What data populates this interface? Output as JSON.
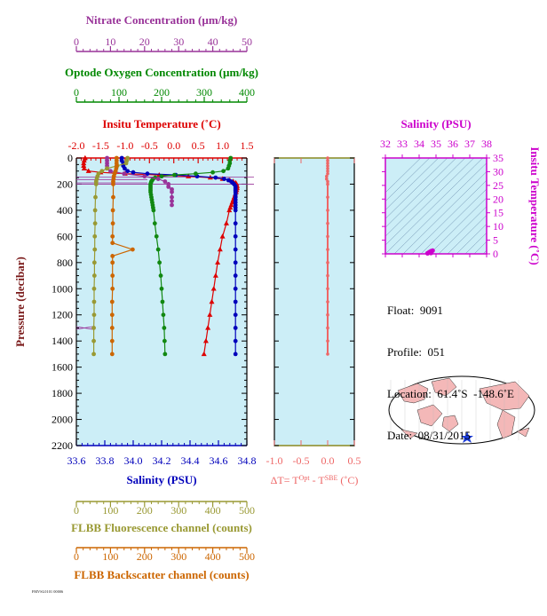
{
  "chart_data": {
    "type": "scatter",
    "main_panel": {
      "y_axis": {
        "label": "Pressure (decibar)",
        "range": [
          2200,
          0
        ],
        "ticks": [
          0,
          200,
          400,
          600,
          800,
          1000,
          1200,
          1400,
          1600,
          1800,
          2000,
          2200
        ]
      },
      "axes": [
        {
          "key": "nitrate",
          "label": "Nitrate Concentration (µm/kg)",
          "range": [
            0,
            50
          ],
          "ticks": [
            0,
            10,
            20,
            30,
            40,
            50
          ],
          "color": "#993399",
          "side": "top"
        },
        {
          "key": "oxygen",
          "label": "Optode Oxygen Concentration (µm/kg)",
          "range": [
            0,
            400
          ],
          "ticks": [
            0,
            100,
            200,
            300,
            400
          ],
          "color": "#008800",
          "side": "top"
        },
        {
          "key": "temperature",
          "label": "Insitu Temperature (˚C)",
          "range": [
            -2.0,
            1.5
          ],
          "ticks": [
            "-2.0",
            "-1.5",
            "-1.0",
            "-0.5",
            "0.0",
            "0.5",
            "1.0",
            "1.5"
          ],
          "color": "#dd0000",
          "side": "top"
        },
        {
          "key": "salinity",
          "label": "Salinity (PSU)",
          "range": [
            33.6,
            34.8
          ],
          "ticks": [
            "33.6",
            "33.8",
            "34.0",
            "34.2",
            "34.4",
            "34.6",
            "34.8"
          ],
          "color": "#0000bb",
          "side": "bottom"
        },
        {
          "key": "fluorescence",
          "label": "FLBB Fluorescence channel (counts)",
          "range": [
            0,
            500
          ],
          "ticks": [
            0,
            100,
            200,
            300,
            400,
            500
          ],
          "color": "#999933",
          "side": "bottom"
        },
        {
          "key": "backscatter",
          "label": "FLBB Backscatter channel (counts)",
          "range": [
            0,
            500
          ],
          "ticks": [
            0,
            100,
            200,
            300,
            400,
            500
          ],
          "color": "#cc6600",
          "side": "bottom"
        }
      ],
      "series": [
        {
          "key": "temperature",
          "marker": "triangle",
          "color": "#dd0000",
          "p": [
            0,
            20,
            40,
            60,
            80,
            100,
            110,
            120,
            130,
            140,
            150,
            160,
            170,
            180,
            190,
            200,
            215,
            230,
            245,
            260,
            280,
            300,
            320,
            340,
            360,
            380,
            400,
            500,
            600,
            700,
            800,
            900,
            1000,
            1100,
            1200,
            1300,
            1400,
            1500
          ],
          "v": [
            -1.82,
            -1.84,
            -1.85,
            -1.85,
            -1.84,
            -1.75,
            -1.5,
            -1.0,
            -0.3,
            0.3,
            0.75,
            1.0,
            1.15,
            1.22,
            1.27,
            1.29,
            1.3,
            1.3,
            1.29,
            1.28,
            1.26,
            1.24,
            1.22,
            1.2,
            1.18,
            1.16,
            1.14,
            1.08,
            1.0,
            0.95,
            0.9,
            0.86,
            0.82,
            0.78,
            0.74,
            0.7,
            0.66,
            0.62
          ]
        },
        {
          "key": "salinity",
          "marker": "circle",
          "color": "#0000bb",
          "p": [
            0,
            20,
            40,
            60,
            80,
            100,
            110,
            120,
            130,
            140,
            150,
            160,
            170,
            180,
            190,
            200,
            215,
            230,
            245,
            260,
            280,
            300,
            320,
            340,
            360,
            380,
            400,
            500,
            600,
            700,
            800,
            900,
            1000,
            1100,
            1200,
            1300,
            1400,
            1500
          ],
          "v": [
            33.92,
            33.92,
            33.93,
            33.93,
            33.94,
            33.96,
            34.0,
            34.1,
            34.3,
            34.45,
            34.58,
            34.64,
            34.67,
            34.69,
            34.7,
            34.71,
            34.72,
            34.72,
            34.72,
            34.72,
            34.72,
            34.72,
            34.72,
            34.72,
            34.72,
            34.72,
            34.72,
            34.72,
            34.72,
            34.72,
            34.72,
            34.72,
            34.72,
            34.72,
            34.72,
            34.72,
            34.72,
            34.72
          ]
        },
        {
          "key": "oxygen",
          "marker": "circle",
          "color": "#118811",
          "p": [
            0,
            20,
            40,
            60,
            80,
            100,
            110,
            120,
            130,
            140,
            150,
            160,
            170,
            180,
            190,
            200,
            215,
            230,
            245,
            260,
            280,
            300,
            320,
            340,
            360,
            380,
            400,
            500,
            600,
            700,
            800,
            900,
            1000,
            1100,
            1200,
            1300,
            1400,
            1500
          ],
          "v": [
            362,
            360,
            360,
            358,
            356,
            345,
            320,
            280,
            230,
            200,
            185,
            180,
            178,
            176,
            175,
            174,
            174,
            174,
            174,
            174,
            175,
            176,
            177,
            178,
            179,
            180,
            181,
            184,
            188,
            192,
            195,
            198,
            200,
            202,
            204,
            206,
            207,
            208
          ]
        },
        {
          "key": "nitrate",
          "marker": "circle",
          "color": "#993399",
          "p": [
            0,
            20,
            40,
            60,
            80,
            100,
            120,
            140,
            160,
            180,
            200,
            220,
            240,
            260,
            300,
            330,
            360
          ],
          "v": [
            9,
            9,
            9,
            9,
            9,
            10,
            14,
            20,
            24,
            26,
            27,
            27,
            28,
            28,
            28,
            28,
            28
          ]
        },
        {
          "key": "fluorescence",
          "marker": "circle",
          "color": "#999933",
          "p": [
            0,
            20,
            40,
            60,
            80,
            100,
            120,
            140,
            160,
            180,
            200,
            300,
            400,
            500,
            600,
            700,
            800,
            900,
            1000,
            1100,
            1200,
            1300,
            1400,
            1500
          ],
          "v": [
            150,
            148,
            146,
            120,
            90,
            75,
            65,
            62,
            60,
            58,
            58,
            56,
            55,
            55,
            54,
            54,
            53,
            53,
            52,
            52,
            52,
            51,
            51,
            51
          ]
        },
        {
          "key": "backscatter",
          "marker": "circle",
          "color": "#cc6600",
          "p": [
            0,
            20,
            40,
            60,
            80,
            100,
            120,
            140,
            160,
            180,
            200,
            300,
            400,
            500,
            600,
            650,
            700,
            750,
            800,
            900,
            1000,
            1100,
            1200,
            1300,
            1400,
            1500
          ],
          "v": [
            118,
            118,
            118,
            118,
            117,
            115,
            112,
            110,
            109,
            108,
            108,
            108,
            107,
            107,
            106,
            106,
            165,
            106,
            106,
            106,
            106,
            105,
            105,
            105,
            105,
            105
          ]
        }
      ]
    },
    "delta_panel": {
      "xlabel": "ΔT= T",
      "xlabel_sup1": "Opt",
      "xlabel_mid": " - T",
      "xlabel_sup2": "SBE",
      "xlabel_unit": " (˚C)",
      "range": [
        -1.0,
        0.5
      ],
      "ticks": [
        "-1.0",
        "-0.5",
        "0.0",
        "0.5"
      ],
      "color": "#ee6666",
      "p": [
        0,
        20,
        40,
        60,
        80,
        100,
        120,
        140,
        160,
        180,
        200,
        300,
        400,
        500,
        600,
        700,
        800,
        900,
        1000,
        1100,
        1200,
        1300,
        1400,
        1500
      ],
      "v": [
        0.0,
        0.0,
        0.0,
        0.0,
        0.0,
        0.0,
        0.0,
        -0.02,
        -0.02,
        0.0,
        0.0,
        0.0,
        0.0,
        0.0,
        0.0,
        0.0,
        0.0,
        0.0,
        0.0,
        0.0,
        0.0,
        0.0,
        0.0,
        0.0
      ]
    },
    "ts_panel": {
      "xlabel": "Salinity (PSU)",
      "ylabel": "Insitu Temperature (˚C)",
      "x_ticks": [
        32,
        33,
        34,
        35,
        36,
        37,
        38
      ],
      "y_ticks": [
        0,
        5,
        10,
        15,
        20,
        25,
        30,
        35
      ],
      "xlim": [
        32,
        38
      ],
      "ylim": [
        0,
        35
      ],
      "color": "#cc00cc",
      "points": [
        [
          34.7,
          1.0
        ],
        [
          34.6,
          0.6
        ],
        [
          34.8,
          1.2
        ],
        [
          34.7,
          0.3
        ],
        [
          34.5,
          0.2
        ]
      ]
    }
  },
  "info": {
    "float": "Float:  9091",
    "profile": "Profile:  051",
    "location": "Location:  61.4˚S  -148.6˚E",
    "date": "Date:  08/31/2015"
  },
  "stamp": "FMVSL0101 00006",
  "colors": {
    "plot_bg": "#cceef7",
    "land": "#f4b8b8"
  }
}
